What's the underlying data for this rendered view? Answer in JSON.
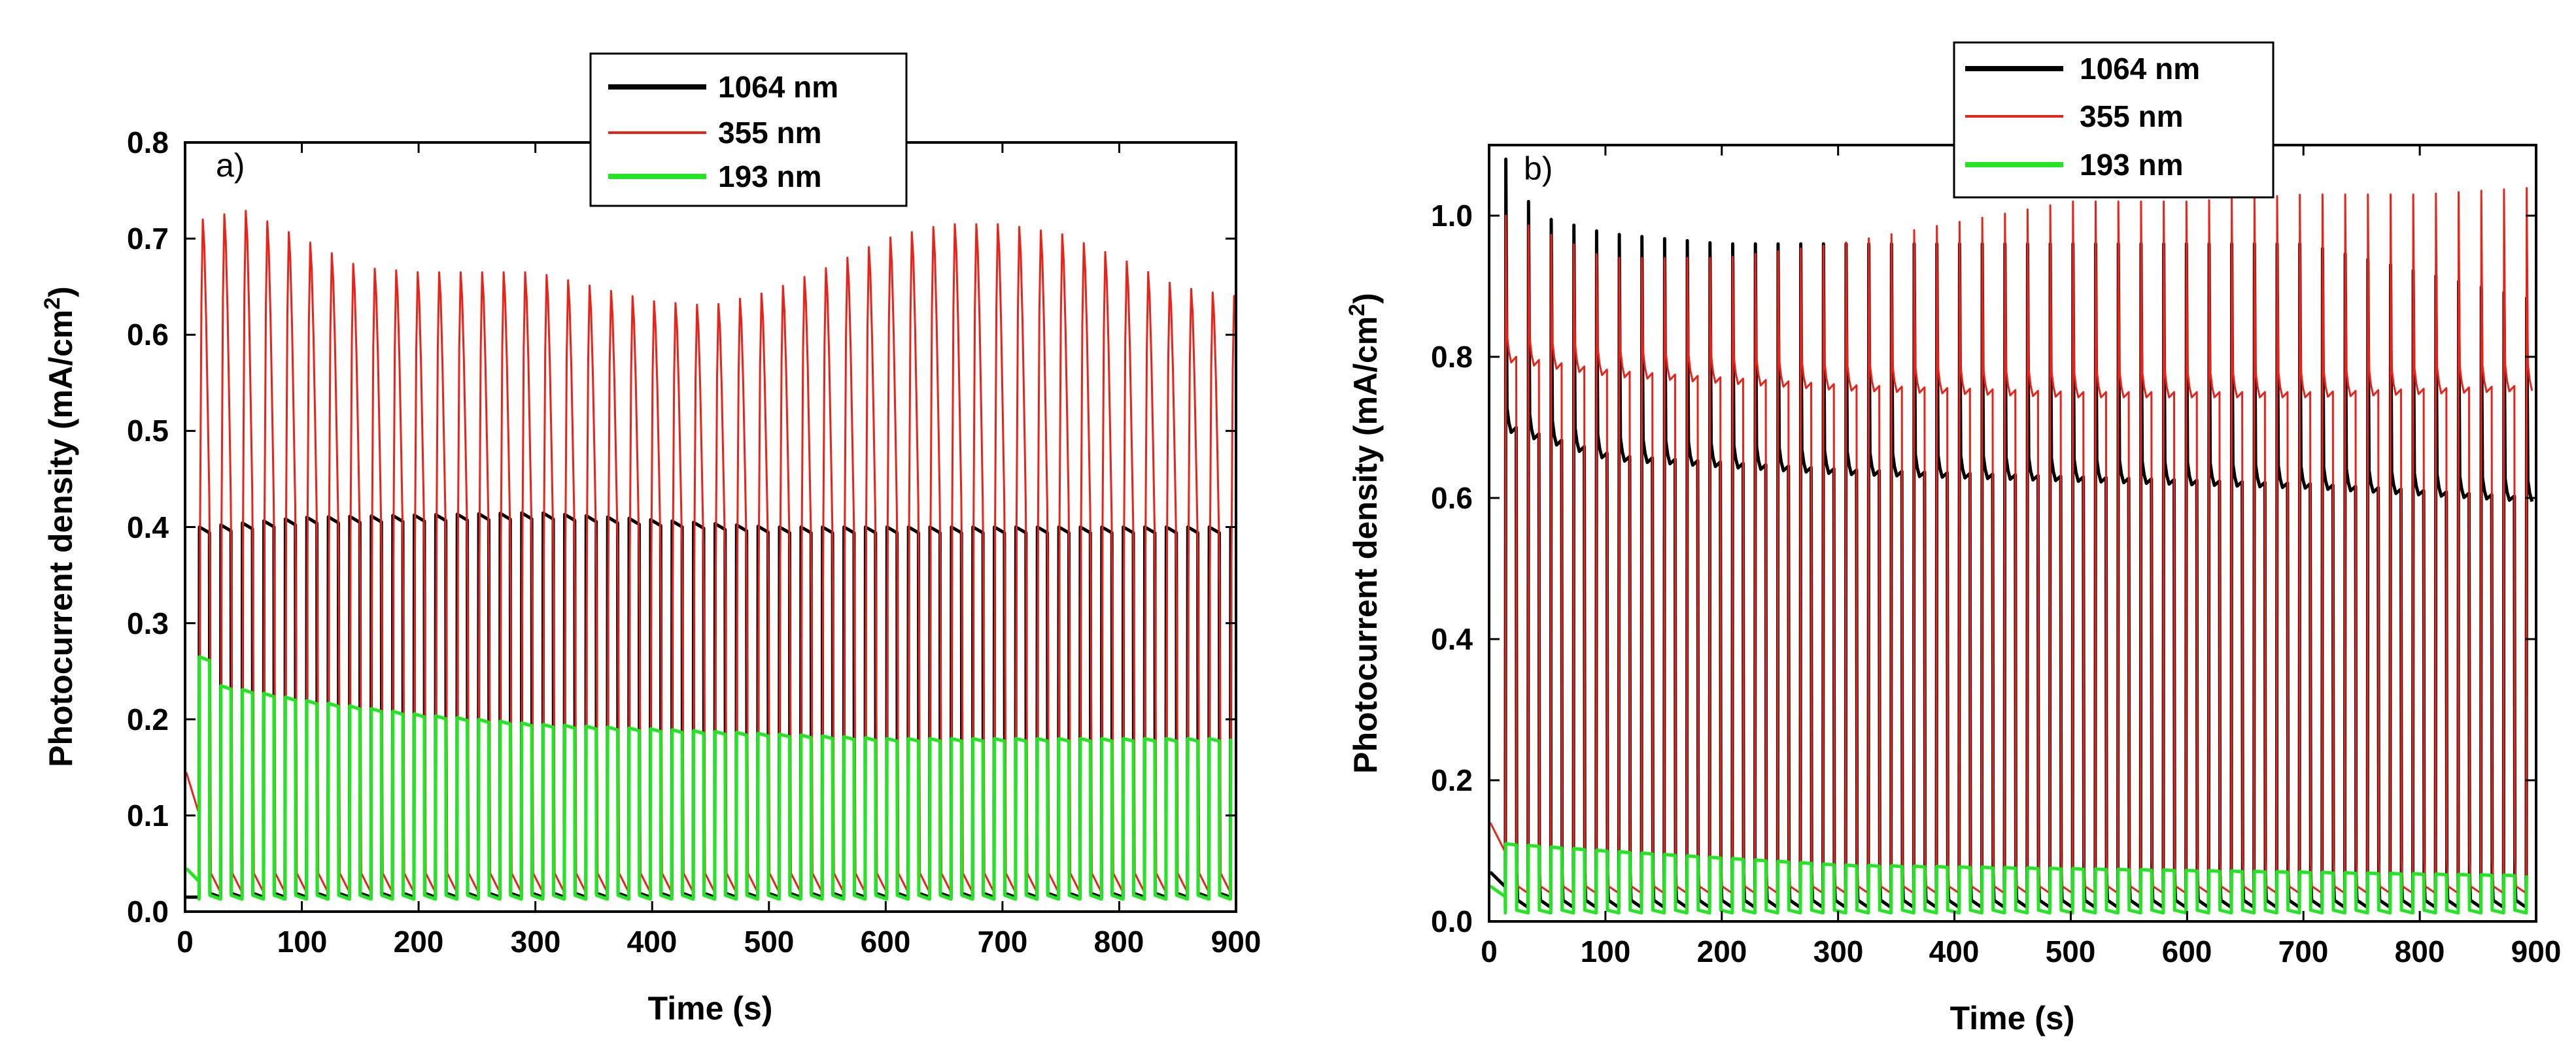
{
  "chart_data": [
    {
      "panel": "a)",
      "type": "line",
      "xlabel": "Time (s)",
      "ylabel": "Photocurrent density (mA/cm²)",
      "xlim": [
        0,
        900
      ],
      "ylim": [
        0,
        0.8
      ],
      "xticks": [
        0,
        100,
        200,
        300,
        400,
        500,
        600,
        700,
        800,
        900
      ],
      "yticks": [
        0.0,
        0.1,
        0.2,
        0.3,
        0.4,
        0.5,
        0.6,
        0.7,
        0.8
      ],
      "ytick_labels": [
        "0.0",
        "0.1",
        "0.2",
        "0.3",
        "0.4",
        "0.5",
        "0.6",
        "0.7",
        "0.8"
      ],
      "cycle_period_s": 18.4,
      "light_on_start_s": 12,
      "legend": [
        "1064 nm",
        "355 nm",
        "193 nm"
      ],
      "series": [
        {
          "name": "1064 nm",
          "color": "#000000",
          "pattern": "square-pulse",
          "on_level_points": [
            [
              12,
              0.4
            ],
            [
              100,
              0.41
            ],
            [
              300,
              0.415
            ],
            [
              500,
              0.4
            ],
            [
              700,
              0.4
            ],
            [
              900,
              0.4
            ]
          ],
          "off_level": 0.015
        },
        {
          "name": "355 nm",
          "color": "#e8231a",
          "pattern": "spike-decay",
          "peak_points": [
            [
              15,
              0.72
            ],
            [
              50,
              0.73
            ],
            [
              100,
              0.7
            ],
            [
              150,
              0.67
            ],
            [
              200,
              0.665
            ],
            [
              300,
              0.665
            ],
            [
              400,
              0.635
            ],
            [
              450,
              0.63
            ],
            [
              500,
              0.645
            ],
            [
              550,
              0.67
            ],
            [
              600,
              0.7
            ],
            [
              650,
              0.715
            ],
            [
              700,
              0.715
            ],
            [
              750,
              0.705
            ],
            [
              800,
              0.68
            ],
            [
              850,
              0.65
            ],
            [
              900,
              0.64
            ]
          ],
          "off_level": 0.02,
          "start_level": 0.145
        },
        {
          "name": "193 nm",
          "color": "#22e622",
          "pattern": "square-pulse",
          "on_level_points": [
            [
              12,
              0.265
            ],
            [
              30,
              0.235
            ],
            [
              100,
              0.22
            ],
            [
              200,
              0.205
            ],
            [
              300,
              0.195
            ],
            [
              400,
              0.19
            ],
            [
              500,
              0.185
            ],
            [
              600,
              0.18
            ],
            [
              700,
              0.18
            ],
            [
              800,
              0.18
            ],
            [
              900,
              0.18
            ]
          ],
          "off_level": 0.013,
          "start_level": 0.045
        }
      ]
    },
    {
      "panel": "b)",
      "type": "line",
      "xlabel": "Time (s)",
      "ylabel": "Photocurrent density (mA/cm²)",
      "xlim": [
        0,
        900
      ],
      "ylim": [
        0,
        1.1
      ],
      "xticks": [
        0,
        100,
        200,
        300,
        400,
        500,
        600,
        700,
        800,
        900
      ],
      "yticks": [
        0.0,
        0.2,
        0.4,
        0.6,
        0.8,
        1.0
      ],
      "ytick_labels": [
        "0.0",
        "0.2",
        "0.4",
        "0.6",
        "0.8",
        "1.0"
      ],
      "cycle_period_s": 19.5,
      "light_on_start_s": 14,
      "legend": [
        "1064 nm",
        "355 nm",
        "193 nm"
      ],
      "series": [
        {
          "name": "1064 nm",
          "color": "#000000",
          "pattern": "spike-plateau",
          "peak_points": [
            [
              14,
              1.08
            ],
            [
              40,
              1.0
            ],
            [
              100,
              0.975
            ],
            [
              200,
              0.96
            ],
            [
              300,
              0.96
            ],
            [
              500,
              0.96
            ],
            [
              700,
              0.96
            ],
            [
              900,
              0.88
            ]
          ],
          "plateau_points": [
            [
              14,
              0.7
            ],
            [
              100,
              0.66
            ],
            [
              300,
              0.64
            ],
            [
              500,
              0.63
            ],
            [
              700,
              0.62
            ],
            [
              900,
              0.6
            ]
          ],
          "off_level": 0.02,
          "start_level": 0.07
        },
        {
          "name": "355 nm",
          "color": "#e8231a",
          "pattern": "spike-plateau",
          "peak_points": [
            [
              14,
              1.0
            ],
            [
              100,
              0.94
            ],
            [
              200,
              0.94
            ],
            [
              300,
              0.96
            ],
            [
              400,
              0.99
            ],
            [
              500,
              1.02
            ],
            [
              600,
              1.02
            ],
            [
              700,
              1.03
            ],
            [
              800,
              1.03
            ],
            [
              900,
              1.04
            ]
          ],
          "plateau_points": [
            [
              14,
              0.8
            ],
            [
              100,
              0.78
            ],
            [
              300,
              0.76
            ],
            [
              500,
              0.75
            ],
            [
              700,
              0.75
            ],
            [
              900,
              0.76
            ]
          ],
          "off_level": 0.04,
          "start_level": 0.14
        },
        {
          "name": "193 nm",
          "color": "#22e622",
          "pattern": "square-pulse",
          "on_level_points": [
            [
              14,
              0.11
            ],
            [
              100,
              0.1
            ],
            [
              200,
              0.09
            ],
            [
              300,
              0.08
            ],
            [
              500,
              0.075
            ],
            [
              700,
              0.07
            ],
            [
              900,
              0.065
            ]
          ],
          "off_level": 0.012,
          "start_level": 0.05
        }
      ]
    }
  ]
}
